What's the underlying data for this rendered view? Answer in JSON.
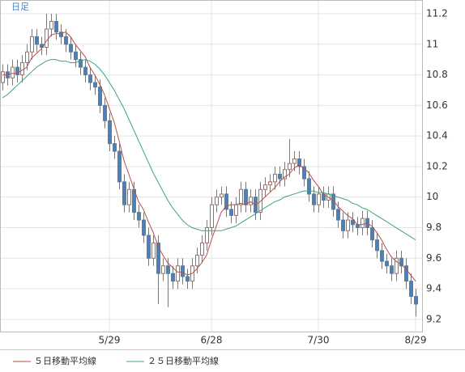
{
  "chart_data": {
    "type": "candlestick",
    "label": "日足",
    "open": [
      10.75,
      10.82,
      10.78,
      10.85,
      10.8,
      10.88,
      10.95,
      11.05,
      11.0,
      10.98,
      11.1,
      11.15,
      11.08,
      11.05,
      11.0,
      10.95,
      10.9,
      10.85,
      10.8,
      10.75,
      10.72,
      10.6,
      10.5,
      10.35,
      10.3,
      10.1,
      9.95,
      10.05,
      9.9,
      9.85,
      9.75,
      9.6,
      9.7,
      9.5,
      9.55,
      9.5,
      9.45,
      9.55,
      9.48,
      9.45,
      9.55,
      9.62,
      9.7,
      9.8,
      9.95,
      10.0,
      10.02,
      9.92,
      9.88,
      9.95,
      10.05,
      9.95,
      10.0,
      9.9,
      10.05,
      10.08,
      10.1,
      10.15,
      10.12,
      10.18,
      10.22,
      10.25,
      10.2,
      10.12,
      10.02,
      9.95,
      10.02,
      9.98,
      10.02,
      9.92,
      9.85,
      9.78,
      9.85,
      9.82,
      9.8,
      9.86,
      9.8,
      9.72,
      9.65,
      9.58,
      9.55,
      9.5,
      9.6,
      9.55,
      9.45,
      9.35
    ],
    "high": [
      10.87,
      10.87,
      10.9,
      10.9,
      10.93,
      11.0,
      11.1,
      11.1,
      11.05,
      11.2,
      11.2,
      11.2,
      11.13,
      11.1,
      11.05,
      11.0,
      10.95,
      10.9,
      10.85,
      10.8,
      10.77,
      10.65,
      10.55,
      10.4,
      10.35,
      10.15,
      10.1,
      10.1,
      9.95,
      9.9,
      9.8,
      9.75,
      9.75,
      9.6,
      9.6,
      9.55,
      9.6,
      9.6,
      9.53,
      9.6,
      9.67,
      9.75,
      9.85,
      10.0,
      10.05,
      10.07,
      10.07,
      9.97,
      10.0,
      10.1,
      10.1,
      10.05,
      10.05,
      10.1,
      10.13,
      10.15,
      10.2,
      10.2,
      10.23,
      10.38,
      10.3,
      10.3,
      10.25,
      10.17,
      10.07,
      10.07,
      10.07,
      10.07,
      10.07,
      9.97,
      9.9,
      9.9,
      9.9,
      9.87,
      9.91,
      9.91,
      9.85,
      9.77,
      9.7,
      9.63,
      9.6,
      9.65,
      9.65,
      9.6,
      9.5,
      9.4
    ],
    "low": [
      10.7,
      10.73,
      10.73,
      10.75,
      10.75,
      10.83,
      10.9,
      10.95,
      10.93,
      10.93,
      11.05,
      11.03,
      11.0,
      10.95,
      10.9,
      10.85,
      10.8,
      10.75,
      10.7,
      10.67,
      10.55,
      10.45,
      10.3,
      10.25,
      10.05,
      9.9,
      9.9,
      9.85,
      9.8,
      9.7,
      9.55,
      9.55,
      9.3,
      9.45,
      9.28,
      9.4,
      9.4,
      9.43,
      9.4,
      9.4,
      9.5,
      9.57,
      9.65,
      9.75,
      9.9,
      9.95,
      9.87,
      9.83,
      9.83,
      9.9,
      9.9,
      9.9,
      9.85,
      9.85,
      10.0,
      10.03,
      10.05,
      10.07,
      10.07,
      10.13,
      10.17,
      10.15,
      10.07,
      9.97,
      9.9,
      9.9,
      9.93,
      9.93,
      9.87,
      9.8,
      9.73,
      9.73,
      9.77,
      9.75,
      9.75,
      9.75,
      9.67,
      9.6,
      9.53,
      9.5,
      9.45,
      9.45,
      9.5,
      9.4,
      9.3,
      9.22
    ],
    "close": [
      10.82,
      10.78,
      10.85,
      10.8,
      10.88,
      10.95,
      11.05,
      11.0,
      10.98,
      11.1,
      11.15,
      11.08,
      11.05,
      11.0,
      10.95,
      10.9,
      10.85,
      10.8,
      10.75,
      10.72,
      10.6,
      10.5,
      10.35,
      10.3,
      10.1,
      9.95,
      10.05,
      9.9,
      9.85,
      9.75,
      9.6,
      9.7,
      9.5,
      9.55,
      9.5,
      9.45,
      9.55,
      9.48,
      9.45,
      9.55,
      9.62,
      9.7,
      9.8,
      9.95,
      10.0,
      10.02,
      9.92,
      9.88,
      9.95,
      10.05,
      9.95,
      10.0,
      9.9,
      10.05,
      10.08,
      10.1,
      10.15,
      10.12,
      10.18,
      10.22,
      10.25,
      10.2,
      10.12,
      10.02,
      9.95,
      10.02,
      9.98,
      10.02,
      9.92,
      9.85,
      9.78,
      9.85,
      9.82,
      9.8,
      9.86,
      9.8,
      9.72,
      9.65,
      9.58,
      9.55,
      9.5,
      9.6,
      9.55,
      9.45,
      9.35,
      9.3
    ],
    "up_color": "#b5655a",
    "down_color": "#4f7fb3",
    "series": [
      {
        "name": "５日移動平均線",
        "color": "#b5504a",
        "values": [
          10.8,
          10.8,
          10.81,
          10.81,
          10.83,
          10.85,
          10.91,
          10.94,
          10.97,
          11.02,
          11.06,
          11.07,
          11.07,
          11.08,
          11.05,
          11.0,
          10.96,
          10.92,
          10.85,
          10.8,
          10.74,
          10.67,
          10.58,
          10.49,
          10.37,
          10.24,
          10.15,
          10.06,
          9.97,
          9.92,
          9.84,
          9.77,
          9.68,
          9.62,
          9.57,
          9.54,
          9.51,
          9.51,
          9.49,
          9.5,
          9.53,
          9.57,
          9.62,
          9.72,
          9.81,
          9.9,
          9.94,
          9.95,
          9.95,
          9.96,
          9.95,
          9.97,
          9.95,
          9.97,
          10.0,
          10.03,
          10.06,
          10.1,
          10.13,
          10.15,
          10.19,
          10.21,
          10.19,
          10.16,
          10.11,
          10.07,
          10.02,
          10.0,
          9.98,
          9.94,
          9.91,
          9.88,
          9.86,
          9.82,
          9.82,
          9.83,
          9.81,
          9.77,
          9.72,
          9.66,
          9.61,
          9.58,
          9.56,
          9.53,
          9.49,
          9.45
        ]
      },
      {
        "name": "２５日移動平均線",
        "color": "#3aa57e",
        "values": [
          10.65,
          10.67,
          10.7,
          10.73,
          10.76,
          10.79,
          10.82,
          10.85,
          10.87,
          10.89,
          10.9,
          10.9,
          10.89,
          10.89,
          10.88,
          10.88,
          10.89,
          10.9,
          10.89,
          10.87,
          10.84,
          10.8,
          10.75,
          10.7,
          10.64,
          10.58,
          10.51,
          10.44,
          10.37,
          10.3,
          10.23,
          10.16,
          10.1,
          10.04,
          9.98,
          9.93,
          9.89,
          9.85,
          9.82,
          9.8,
          9.79,
          9.78,
          9.78,
          9.78,
          9.78,
          9.78,
          9.79,
          9.8,
          9.81,
          9.83,
          9.85,
          9.87,
          9.89,
          9.91,
          9.93,
          9.95,
          9.97,
          9.98,
          10.0,
          10.01,
          10.02,
          10.03,
          10.04,
          10.04,
          10.04,
          10.03,
          10.03,
          10.02,
          10.01,
          10.0,
          9.99,
          9.98,
          9.96,
          9.95,
          9.93,
          9.92,
          9.9,
          9.88,
          9.86,
          9.84,
          9.82,
          9.8,
          9.78,
          9.76,
          9.74,
          9.72
        ]
      }
    ],
    "ylim": [
      9.12,
      11.29
    ],
    "yticks": [
      9.2,
      9.4,
      9.6,
      9.8,
      10,
      10.2,
      10.4,
      10.6,
      10.8,
      11,
      11.2
    ],
    "xticks": [
      {
        "value": 22,
        "label": "5/29"
      },
      {
        "value": 43,
        "label": "6/28"
      },
      {
        "value": 65,
        "label": "7/30"
      },
      {
        "value": 85,
        "label": "8/29"
      }
    ],
    "grid": true,
    "legend": "bottom-left"
  }
}
